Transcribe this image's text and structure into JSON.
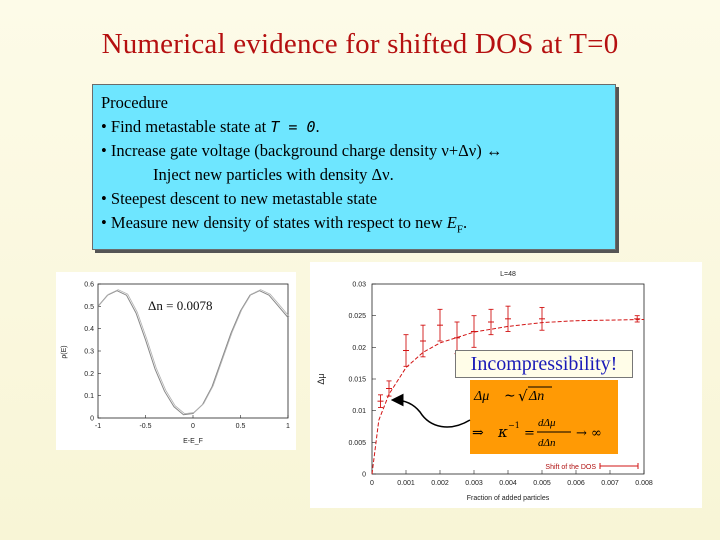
{
  "slide": {
    "title": "Numerical evidence for shifted DOS at T=0",
    "procedure": {
      "heading": "Procedure",
      "step1_prefix": "• Find metastable state at ",
      "step1_T": "T = 0",
      "step1_suffix": ".",
      "step2_prefix": "• Increase gate voltage (background charge density ν+Δν) ↔",
      "step2_indent": "Inject new particles with density Δν.",
      "step3": "• Steepest descent to new metastable state",
      "step4_prefix": "• Measure new density of states with respect to new ",
      "step4_E": "E",
      "step4_sub": "F",
      "step4_suffix": "."
    },
    "incompressibility_label": "Incompressibility!",
    "formula": {
      "line1_left": "Δμ",
      "line1_sim": "∼",
      "line1_sqrt": "√",
      "line1_right": "Δn",
      "arrow": "⇒",
      "kappa": "κ",
      "exp": "−1",
      "eq": "=",
      "frac_num": "dΔμ",
      "frac_den": "dΔn",
      "limit_arrow": "→ ∞"
    }
  },
  "chart_data": [
    {
      "type": "line",
      "title": "",
      "annotation": "Δn = 0.0078",
      "xlabel": "E-E_F",
      "ylabel": "ρ(E)",
      "xlim": [
        -1,
        1
      ],
      "ylim": [
        0,
        0.6
      ],
      "xticks": [
        "-1",
        "-0.5",
        "0",
        "0.5",
        "1"
      ],
      "yticks": [
        "0",
        "0.1",
        "0.2",
        "0.3",
        "0.4",
        "0.5",
        "0.6"
      ],
      "series": [
        {
          "x": [
            -1.0,
            -0.9,
            -0.8,
            -0.7,
            -0.6,
            -0.5,
            -0.4,
            -0.3,
            -0.2,
            -0.1,
            0.0,
            0.1,
            0.2,
            0.3,
            0.4,
            0.5,
            0.6,
            0.7,
            0.8,
            0.9,
            1.0
          ],
          "y": [
            0.5,
            0.55,
            0.57,
            0.55,
            0.47,
            0.35,
            0.22,
            0.12,
            0.05,
            0.015,
            0.02,
            0.06,
            0.14,
            0.26,
            0.38,
            0.48,
            0.55,
            0.57,
            0.55,
            0.5,
            0.45
          ]
        }
      ]
    },
    {
      "type": "scatter",
      "title": "L=48",
      "xlabel": "Fraction of added particles",
      "ylabel": "Δμ",
      "xlim": [
        0,
        0.008
      ],
      "ylim": [
        0,
        0.03
      ],
      "xticks": [
        "0",
        "0.001",
        "0.002",
        "0.003",
        "0.004",
        "0.005",
        "0.006",
        "0.007",
        "0.008"
      ],
      "yticks": [
        "0",
        "0.005",
        "0.01",
        "0.015",
        "0.02",
        "0.025",
        "0.03"
      ],
      "legend": "Shift of the DOS",
      "legend_position": "bottom-right",
      "series": [
        {
          "name": "Shift of the DOS",
          "x": [
            0.00025,
            0.0005,
            0.001,
            0.0015,
            0.002,
            0.0025,
            0.003,
            0.0035,
            0.004,
            0.005,
            0.0078
          ],
          "y": [
            0.0115,
            0.0135,
            0.0195,
            0.021,
            0.0235,
            0.0215,
            0.0225,
            0.024,
            0.0245,
            0.0245,
            0.0245
          ],
          "err": [
            0.001,
            0.0012,
            0.0025,
            0.0025,
            0.0025,
            0.0025,
            0.0025,
            0.002,
            0.002,
            0.0018,
            0.0005
          ]
        },
        {
          "name": "fit",
          "x": [
            0.0,
            0.0002,
            0.0005,
            0.001,
            0.0015,
            0.002,
            0.003,
            0.004,
            0.005,
            0.006,
            0.007,
            0.008
          ],
          "y": [
            0.0,
            0.0085,
            0.0126,
            0.0168,
            0.0192,
            0.0207,
            0.0224,
            0.0233,
            0.0239,
            0.0242,
            0.0243,
            0.0244
          ]
        }
      ]
    }
  ]
}
